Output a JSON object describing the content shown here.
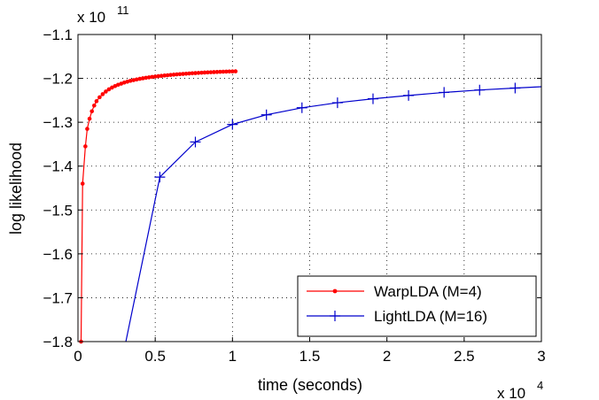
{
  "chart_data": {
    "type": "line",
    "xlabel": "time (seconds)",
    "ylabel": "log likelihood",
    "x_multiplier": "x 10",
    "x_exponent": "4",
    "y_multiplier": "x 10",
    "y_exponent": "11",
    "xlim": [
      0,
      30000
    ],
    "ylim": [
      -180000000000.0,
      -110000000000.0
    ],
    "x_tick_values": [
      0,
      5000,
      10000,
      15000,
      20000,
      25000,
      30000
    ],
    "x_tick_labels": [
      "0",
      "0.5",
      "1",
      "1.5",
      "2",
      "2.5",
      "3"
    ],
    "y_tick_values": [
      -180000000000.0,
      -170000000000.0,
      -160000000000.0,
      -150000000000.0,
      -140000000000.0,
      -130000000000.0,
      -120000000000.0,
      -110000000000.0
    ],
    "y_tick_labels": [
      "−1.8",
      "−1.7",
      "−1.6",
      "−1.5",
      "−1.4",
      "−1.3",
      "−1.2",
      "−1.1"
    ],
    "grid": true,
    "legend_position": "bottom-right",
    "series": [
      {
        "name": "WarpLDA (M=4)",
        "color": "#ff0000",
        "marker": "dot",
        "x": [
          200,
          300,
          480,
          600,
          750,
          900,
          1050,
          1200,
          1400,
          1600,
          1800,
          2000,
          2200,
          2400,
          2600,
          2800,
          3000,
          3200,
          3400,
          3600,
          3800,
          4000,
          4200,
          4400,
          4600,
          4800,
          5000,
          5200,
          5400,
          5600,
          5800,
          6000,
          6200,
          6400,
          6600,
          6800,
          7000,
          7200,
          7400,
          7600,
          7800,
          8000,
          8200,
          8400,
          8600,
          8800,
          9000,
          9200,
          9400,
          9600,
          9800,
          10000,
          10200
        ],
        "y": [
          -180000000000.0,
          -144000000000.0,
          -135500000000.0,
          -131500000000.0,
          -129200000000.0,
          -127500000000.0,
          -126200000000.0,
          -125200000000.0,
          -124300000000.0,
          -123600000000.0,
          -123000000000.0,
          -122500000000.0,
          -122100000000.0,
          -121750000000.0,
          -121450000000.0,
          -121200000000.0,
          -120950000000.0,
          -120750000000.0,
          -120550000000.0,
          -120400000000.0,
          -120250000000.0,
          -120100000000.0,
          -119980000000.0,
          -119870000000.0,
          -119770000000.0,
          -119670000000.0,
          -119580000000.0,
          -119500000000.0,
          -119420000000.0,
          -119350000000.0,
          -119280000000.0,
          -119210000000.0,
          -119150000000.0,
          -119090000000.0,
          -119030000000.0,
          -118980000000.0,
          -118930000000.0,
          -118880000000.0,
          -118830000000.0,
          -118790000000.0,
          -118750000000.0,
          -118710000000.0,
          -118670000000.0,
          -118630000000.0,
          -118600000000.0,
          -118570000000.0,
          -118540000000.0,
          -118510000000.0,
          -118480000000.0,
          -118450000000.0,
          -118430000000.0,
          -118410000000.0,
          -118390000000.0
        ]
      },
      {
        "name": "LightLDA (M=16)",
        "color": "#0000cc",
        "marker": "plus",
        "x": [
          3100,
          5300,
          7600,
          10000,
          12200,
          14500,
          16800,
          19100,
          21400,
          23700,
          26000,
          28300,
          30000
        ],
        "y": [
          -180000000000.0,
          -142500000000.0,
          -134500000000.0,
          -130500000000.0,
          -128300000000.0,
          -126700000000.0,
          -125550000000.0,
          -124650000000.0,
          -123900000000.0,
          -123200000000.0,
          -122650000000.0,
          -122200000000.0,
          -121900000000.0
        ],
        "marker_from_index": 1,
        "marker_to_index": 11
      }
    ]
  }
}
